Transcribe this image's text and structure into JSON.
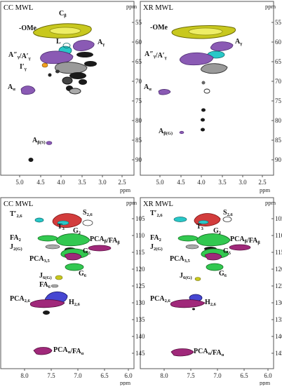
{
  "panels": [
    {
      "id": "top-left",
      "title": "CC MWL",
      "x_ticks": [
        "5.0",
        "4.5",
        "4.0",
        "3.5",
        "3.0",
        "2.5"
      ],
      "y_ticks": [
        "55",
        "60",
        "65",
        "70",
        "75",
        "80",
        "85",
        "90"
      ],
      "x_unit": "ppm",
      "y_unit": "ppm",
      "labels": [
        {
          "main": "C",
          "sub": "β"
        },
        {
          "main": "-OMe",
          "sub": ""
        },
        {
          "main": "L",
          "sub": ""
        },
        {
          "main": "A",
          "sub": "γ"
        },
        {
          "main": "A″",
          "sub": "γ",
          "main2": "/A′",
          "sub2": "γ"
        },
        {
          "main": "I′",
          "sub": "γ"
        },
        {
          "main": "A",
          "sub": "α"
        },
        {
          "main": "A",
          "sub": "β(S)"
        }
      ]
    },
    {
      "id": "top-right",
      "title": "XR MWL",
      "x_ticks": [
        "5.0",
        "4.5",
        "4.0",
        "3.5",
        "3.0",
        "2.5"
      ],
      "y_ticks": [
        "55",
        "60",
        "65",
        "70",
        "75",
        "80",
        "85",
        "90"
      ],
      "x_unit": "ppm",
      "y_unit": "ppm",
      "labels": [
        {
          "main": "-OMe",
          "sub": ""
        },
        {
          "main": "A",
          "sub": "γ"
        },
        {
          "main": "A″",
          "sub": "γ",
          "main2": "/A′",
          "sub2": "γ"
        },
        {
          "main": "A",
          "sub": "α"
        },
        {
          "main": "A",
          "sub": "β(G)"
        }
      ]
    },
    {
      "id": "bottom-left",
      "title": "CC MWL",
      "x_ticks": [
        "8.0",
        "7.5",
        "7.0",
        "6.5",
        "6.0"
      ],
      "y_ticks": [
        "105",
        "110",
        "115",
        "120",
        "125",
        "130",
        "135",
        "140",
        "145"
      ],
      "x_unit": "ppm",
      "y_unit": "ppm",
      "labels": [
        {
          "main": "T′",
          "sub": "2,6"
        },
        {
          "main": "S",
          "sub": "2,6"
        },
        {
          "main": "T",
          "sub": "3"
        },
        {
          "main": "FA",
          "sub": "2"
        },
        {
          "main": "G",
          "sub": "2"
        },
        {
          "main": "J",
          "sub": "2(G)"
        },
        {
          "main": "PCA",
          "sub": "β",
          "main2": "/FA",
          "sub2": "β"
        },
        {
          "main": "G",
          "sub": "5"
        },
        {
          "main": "PCA",
          "sub": "3,5"
        },
        {
          "main": "G",
          "sub": "6"
        },
        {
          "main": "J",
          "sub": "6(G)"
        },
        {
          "main": "FA",
          "sub": "6"
        },
        {
          "main": "PCA",
          "sub": "2,6"
        },
        {
          "main": "H",
          "sub": "2,6"
        },
        {
          "main": "PCA",
          "sub": "α",
          "main2": "/FA",
          "sub2": "α"
        }
      ]
    },
    {
      "id": "bottom-right",
      "title": "XR MWL",
      "x_ticks": [
        "8.0",
        "7.5",
        "7.0",
        "6.5",
        "6.0"
      ],
      "y_ticks": [
        "105",
        "110",
        "115",
        "120",
        "125",
        "130",
        "135",
        "140",
        "145"
      ],
      "x_unit": "ppm",
      "y_unit": "ppm",
      "labels": [
        {
          "main": "T′",
          "sub": "2,6"
        },
        {
          "main": "S",
          "sub": "2,6"
        },
        {
          "main": "T",
          "sub": "3"
        },
        {
          "main": "FA",
          "sub": "2"
        },
        {
          "main": "G",
          "sub": "2"
        },
        {
          "main": "J",
          "sub": "2(G)"
        },
        {
          "main": "PCA",
          "sub": "β",
          "main2": "/FA",
          "sub2": "β"
        },
        {
          "main": "G",
          "sub": "5"
        },
        {
          "main": "PCA",
          "sub": "3,5"
        },
        {
          "main": "G",
          "sub": "6"
        },
        {
          "main": "J",
          "sub": "6(G)"
        },
        {
          "main": "PCA",
          "sub": "2,6"
        },
        {
          "main": "H",
          "sub": "2,6"
        },
        {
          "main": "PCA",
          "sub": "α",
          "main2": "/FA",
          "sub2": "α"
        }
      ]
    }
  ],
  "colors": {
    "methoxyl": "#c8c81e",
    "aryl_ether": "#8a5ab4",
    "cinnamyl": "#28c8c8",
    "resinol": "#f0a020",
    "syringyl": "#d23c3c",
    "guaiacyl": "#32c850",
    "p_hydroxyphenyl": "#4646d2",
    "pca_fa": "#a0287a",
    "other": "#1a1a1a",
    "unassigned": "#999999"
  }
}
